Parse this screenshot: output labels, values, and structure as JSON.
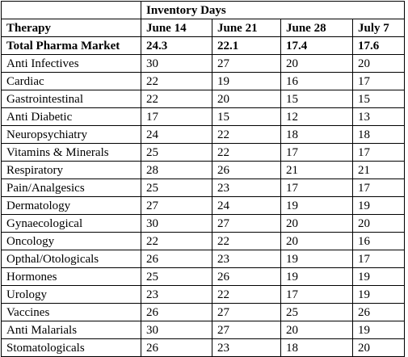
{
  "table": {
    "group_header": "Inventory Days",
    "columns": [
      "Therapy",
      "June 14",
      "June 21",
      "June 28",
      "July 7"
    ],
    "total_row": {
      "therapy": "Total Pharma Market",
      "values": [
        "24.3",
        "22.1",
        "17.4",
        "17.6"
      ]
    },
    "rows": [
      {
        "therapy": "Anti Infectives",
        "values": [
          "30",
          "27",
          "20",
          "20"
        ]
      },
      {
        "therapy": "Cardiac",
        "values": [
          "22",
          "19",
          "16",
          "17"
        ]
      },
      {
        "therapy": "Gastrointestinal",
        "values": [
          "22",
          "20",
          "15",
          "15"
        ]
      },
      {
        "therapy": "Anti Diabetic",
        "values": [
          "17",
          "15",
          "12",
          "13"
        ]
      },
      {
        "therapy": "Neuropsychiatry",
        "values": [
          "24",
          "22",
          "18",
          "18"
        ]
      },
      {
        "therapy": "Vitamins & Minerals",
        "values": [
          "25",
          "22",
          "17",
          "17"
        ]
      },
      {
        "therapy": "Respiratory",
        "values": [
          "28",
          "26",
          "21",
          "21"
        ]
      },
      {
        "therapy": "Pain/Analgesics",
        "values": [
          "25",
          "23",
          "17",
          "17"
        ]
      },
      {
        "therapy": "Dermatology",
        "values": [
          "27",
          "24",
          "19",
          "19"
        ]
      },
      {
        "therapy": "Gynaecological",
        "values": [
          "30",
          "27",
          "20",
          "20"
        ]
      },
      {
        "therapy": "Oncology",
        "values": [
          "22",
          "22",
          "20",
          "16"
        ]
      },
      {
        "therapy": "Opthal/Otologicals",
        "values": [
          "26",
          "23",
          "19",
          "17"
        ]
      },
      {
        "therapy": "Hormones",
        "values": [
          "25",
          "26",
          "19",
          "19"
        ]
      },
      {
        "therapy": "Urology",
        "values": [
          "23",
          "22",
          "17",
          "19"
        ]
      },
      {
        "therapy": "Vaccines",
        "values": [
          "26",
          "27",
          "25",
          "26"
        ]
      },
      {
        "therapy": "Anti Malarials",
        "values": [
          "30",
          "27",
          "20",
          "19"
        ]
      },
      {
        "therapy": "Stomatologicals",
        "values": [
          "26",
          "23",
          "18",
          "20"
        ]
      }
    ]
  }
}
